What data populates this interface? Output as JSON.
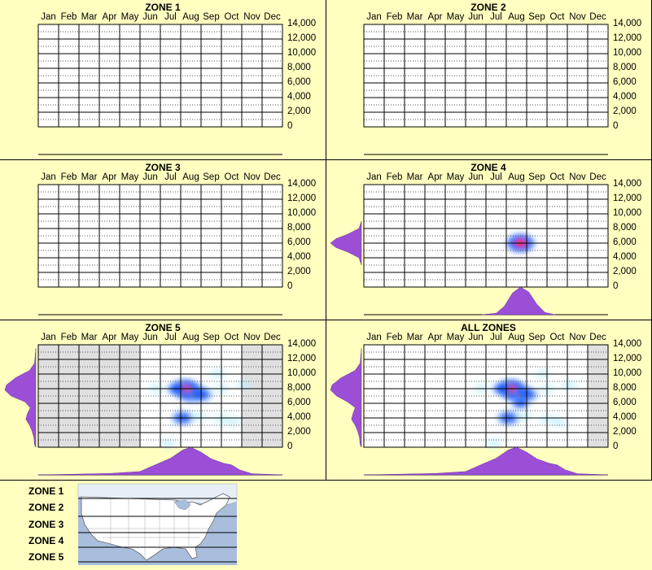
{
  "months": [
    "Jan",
    "Feb",
    "Mar",
    "Apr",
    "May",
    "Jun",
    "Jul",
    "Aug",
    "Sep",
    "Oct",
    "Nov",
    "Dec"
  ],
  "y_ticks": [
    "14,000",
    "12,000",
    "10,000",
    "8,000",
    "6,000",
    "4,000",
    "2,000",
    "0"
  ],
  "colors": {
    "background": "#ffffc0",
    "marginal_fill": "#9a4fd6",
    "out_of_season": "#e0e0e0",
    "density_low": "#bfefff",
    "density_mid": "#1e5cff",
    "density_high": "#ff1a4d",
    "map_water": "#a9bedd",
    "map_land": "#ffffff"
  },
  "chart_data": [
    {
      "type": "heatmap",
      "title": "ZONE 1",
      "x_axis": "month",
      "y_axis": "elevation",
      "ylim": [
        0,
        14000
      ],
      "has_data": false,
      "observations": [],
      "month_distribution": [],
      "elevation_distribution": [],
      "shaded_months": []
    },
    {
      "type": "heatmap",
      "title": "ZONE 2",
      "x_axis": "month",
      "y_axis": "elevation",
      "ylim": [
        0,
        14000
      ],
      "has_data": false,
      "observations": [],
      "month_distribution": [],
      "elevation_distribution": [],
      "shaded_months": []
    },
    {
      "type": "heatmap",
      "title": "ZONE 3",
      "x_axis": "month",
      "y_axis": "elevation",
      "ylim": [
        0,
        14000
      ],
      "has_data": false,
      "observations": [],
      "month_distribution": [],
      "elevation_distribution": [],
      "shaded_months": []
    },
    {
      "type": "heatmap",
      "title": "ZONE 4",
      "x_axis": "month",
      "y_axis": "elevation",
      "ylim": [
        0,
        14000
      ],
      "has_data": true,
      "observations": [
        {
          "month": 8.2,
          "elevation": 6000,
          "intensity": 0.9
        }
      ],
      "month_distribution": [
        {
          "month": 6.3,
          "value": 0
        },
        {
          "month": 7.0,
          "value": 0.05
        },
        {
          "month": 7.4,
          "value": 0.3
        },
        {
          "month": 7.8,
          "value": 0.78
        },
        {
          "month": 8.2,
          "value": 1.0
        },
        {
          "month": 8.6,
          "value": 0.82
        },
        {
          "month": 9.0,
          "value": 0.38
        },
        {
          "month": 9.4,
          "value": 0.08
        },
        {
          "month": 9.9,
          "value": 0
        }
      ],
      "elevation_distribution": [
        {
          "elevation": 9000,
          "value": 0
        },
        {
          "elevation": 8000,
          "value": 0.08
        },
        {
          "elevation": 7200,
          "value": 0.45
        },
        {
          "elevation": 6600,
          "value": 0.82
        },
        {
          "elevation": 6000,
          "value": 1.0
        },
        {
          "elevation": 5400,
          "value": 0.82
        },
        {
          "elevation": 4800,
          "value": 0.45
        },
        {
          "elevation": 4000,
          "value": 0.08
        },
        {
          "elevation": 3000,
          "value": 0
        }
      ],
      "shaded_months": []
    },
    {
      "type": "heatmap",
      "title": "ZONE 5",
      "x_axis": "month",
      "y_axis": "elevation",
      "ylim": [
        0,
        14000
      ],
      "has_data": true,
      "observations": [
        {
          "month": 8.0,
          "elevation": 7500,
          "intensity": 1.0
        },
        {
          "month": 7.7,
          "elevation": 8000,
          "intensity": 0.85
        },
        {
          "month": 8.5,
          "elevation": 7200,
          "intensity": 0.7
        },
        {
          "month": 7.3,
          "elevation": 8000,
          "intensity": 0.55
        },
        {
          "month": 9.5,
          "elevation": 8000,
          "intensity": 0.35
        },
        {
          "month": 7.6,
          "elevation": 4000,
          "intensity": 0.7
        },
        {
          "month": 8.4,
          "elevation": 4200,
          "intensity": 0.35
        },
        {
          "month": 9.5,
          "elevation": 3800,
          "intensity": 0.2
        },
        {
          "month": 10.1,
          "elevation": 3500,
          "intensity": 0.15
        },
        {
          "month": 6.9,
          "elevation": 500,
          "intensity": 0.3
        },
        {
          "month": 9.3,
          "elevation": 10000,
          "intensity": 0.15
        },
        {
          "month": 6.3,
          "elevation": 8000,
          "intensity": 0.15
        },
        {
          "month": 10.6,
          "elevation": 8500,
          "intensity": 0.1
        }
      ],
      "month_distribution": [
        {
          "month": 0.5,
          "value": 0
        },
        {
          "month": 2,
          "value": 0.02
        },
        {
          "month": 4,
          "value": 0.05
        },
        {
          "month": 5.5,
          "value": 0.12
        },
        {
          "month": 6.3,
          "value": 0.38
        },
        {
          "month": 7.0,
          "value": 0.6
        },
        {
          "month": 7.6,
          "value": 0.9
        },
        {
          "month": 8.0,
          "value": 1.0
        },
        {
          "month": 8.5,
          "value": 0.82
        },
        {
          "month": 9.0,
          "value": 0.58
        },
        {
          "month": 9.6,
          "value": 0.42
        },
        {
          "month": 10.0,
          "value": 0.36
        },
        {
          "month": 10.4,
          "value": 0.18
        },
        {
          "month": 11.0,
          "value": 0.04
        },
        {
          "month": 12.5,
          "value": 0
        }
      ],
      "elevation_distribution": [
        {
          "elevation": 13500,
          "value": 0
        },
        {
          "elevation": 11500,
          "value": 0.04
        },
        {
          "elevation": 10500,
          "value": 0.2
        },
        {
          "elevation": 9500,
          "value": 0.65
        },
        {
          "elevation": 8500,
          "value": 0.95
        },
        {
          "elevation": 7800,
          "value": 1.0
        },
        {
          "elevation": 7000,
          "value": 0.8
        },
        {
          "elevation": 6200,
          "value": 0.35
        },
        {
          "elevation": 5400,
          "value": 0.18
        },
        {
          "elevation": 4500,
          "value": 0.28
        },
        {
          "elevation": 3800,
          "value": 0.32
        },
        {
          "elevation": 3000,
          "value": 0.2
        },
        {
          "elevation": 2200,
          "value": 0.12
        },
        {
          "elevation": 1300,
          "value": 0.06
        },
        {
          "elevation": 300,
          "value": 0.04
        },
        {
          "elevation": 0,
          "value": 0
        }
      ],
      "shaded_months": [
        1,
        2,
        3,
        4,
        5,
        11,
        12
      ]
    },
    {
      "type": "heatmap",
      "title": "ALL ZONES",
      "x_axis": "month",
      "y_axis": "elevation",
      "ylim": [
        0,
        14000
      ],
      "has_data": true,
      "observations": [
        {
          "month": 8.0,
          "elevation": 7500,
          "intensity": 1.0
        },
        {
          "month": 7.7,
          "elevation": 8000,
          "intensity": 0.85
        },
        {
          "month": 8.5,
          "elevation": 7200,
          "intensity": 0.7
        },
        {
          "month": 7.3,
          "elevation": 8000,
          "intensity": 0.55
        },
        {
          "month": 9.5,
          "elevation": 8000,
          "intensity": 0.35
        },
        {
          "month": 7.6,
          "elevation": 4000,
          "intensity": 0.7
        },
        {
          "month": 8.2,
          "elevation": 6000,
          "intensity": 0.5
        },
        {
          "month": 8.4,
          "elevation": 4200,
          "intensity": 0.35
        },
        {
          "month": 9.5,
          "elevation": 3800,
          "intensity": 0.2
        },
        {
          "month": 10.1,
          "elevation": 3500,
          "intensity": 0.15
        },
        {
          "month": 6.9,
          "elevation": 500,
          "intensity": 0.3
        },
        {
          "month": 9.3,
          "elevation": 10000,
          "intensity": 0.15
        },
        {
          "month": 6.3,
          "elevation": 8000,
          "intensity": 0.15
        },
        {
          "month": 10.6,
          "elevation": 8500,
          "intensity": 0.1
        }
      ],
      "month_distribution": [
        {
          "month": 0.5,
          "value": 0
        },
        {
          "month": 2,
          "value": 0.02
        },
        {
          "month": 4,
          "value": 0.05
        },
        {
          "month": 5.5,
          "value": 0.12
        },
        {
          "month": 6.3,
          "value": 0.38
        },
        {
          "month": 7.0,
          "value": 0.6
        },
        {
          "month": 7.6,
          "value": 0.9
        },
        {
          "month": 8.0,
          "value": 1.0
        },
        {
          "month": 8.5,
          "value": 0.82
        },
        {
          "month": 9.0,
          "value": 0.58
        },
        {
          "month": 9.6,
          "value": 0.42
        },
        {
          "month": 10.0,
          "value": 0.36
        },
        {
          "month": 10.4,
          "value": 0.18
        },
        {
          "month": 11.0,
          "value": 0.04
        },
        {
          "month": 12.5,
          "value": 0
        }
      ],
      "elevation_distribution": [
        {
          "elevation": 13500,
          "value": 0
        },
        {
          "elevation": 11500,
          "value": 0.04
        },
        {
          "elevation": 10500,
          "value": 0.2
        },
        {
          "elevation": 9500,
          "value": 0.65
        },
        {
          "elevation": 8500,
          "value": 0.95
        },
        {
          "elevation": 7800,
          "value": 1.0
        },
        {
          "elevation": 7000,
          "value": 0.8
        },
        {
          "elevation": 6200,
          "value": 0.45
        },
        {
          "elevation": 5400,
          "value": 0.2
        },
        {
          "elevation": 4500,
          "value": 0.28
        },
        {
          "elevation": 3800,
          "value": 0.32
        },
        {
          "elevation": 3000,
          "value": 0.2
        },
        {
          "elevation": 2200,
          "value": 0.12
        },
        {
          "elevation": 1300,
          "value": 0.06
        },
        {
          "elevation": 300,
          "value": 0.04
        },
        {
          "elevation": 0,
          "value": 0
        }
      ],
      "shaded_months": [
        12
      ]
    }
  ],
  "legend": {
    "zones": [
      "ZONE 1",
      "ZONE 2",
      "ZONE 3",
      "ZONE 4",
      "ZONE 5"
    ],
    "map": "map-of-united-states-with-zone-bands"
  }
}
